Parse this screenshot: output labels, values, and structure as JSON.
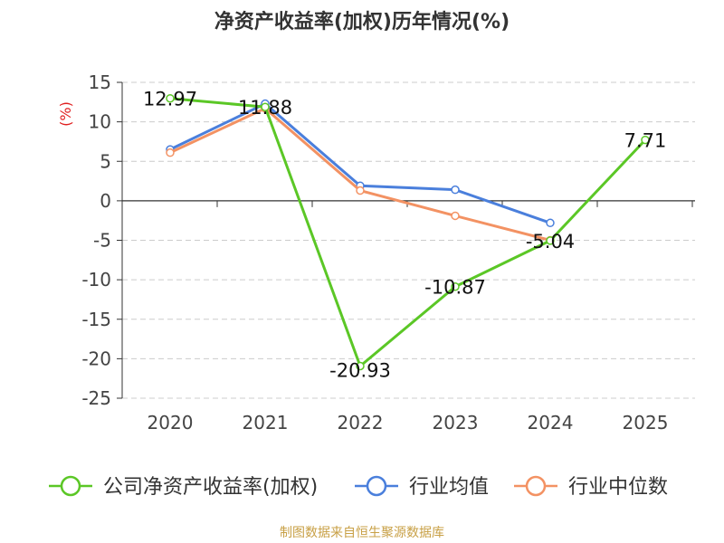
{
  "chart_data": {
    "type": "line",
    "title": "净资产收益率(加权)历年情况(%)",
    "ylabel": "(%)",
    "xlabel": "",
    "categories": [
      "2020",
      "2021",
      "2022",
      "2023",
      "2024",
      "2025"
    ],
    "ylim": [
      -25,
      15
    ],
    "yticks": [
      15,
      10,
      5,
      0,
      -5,
      -10,
      -15,
      -20,
      -25
    ],
    "grid": true,
    "legend_position": "bottom",
    "series": [
      {
        "name": "公司净资产收益率(加权)",
        "values": [
          12.97,
          11.88,
          -20.93,
          -10.87,
          -5.04,
          7.71
        ],
        "color": "#5bc726",
        "labels": [
          "12.97",
          "11.88",
          "-20.93",
          "-10.87",
          "-5.04",
          "7.71"
        ]
      },
      {
        "name": "行业均值",
        "values": [
          6.5,
          12.3,
          1.9,
          1.4,
          -2.8,
          null
        ],
        "color": "#4a7fdc"
      },
      {
        "name": "行业中位数",
        "values": [
          6.1,
          11.7,
          1.3,
          -1.9,
          -5.0,
          null
        ],
        "color": "#f39263"
      }
    ]
  },
  "source": "制图数据来自恒生聚源数据库"
}
